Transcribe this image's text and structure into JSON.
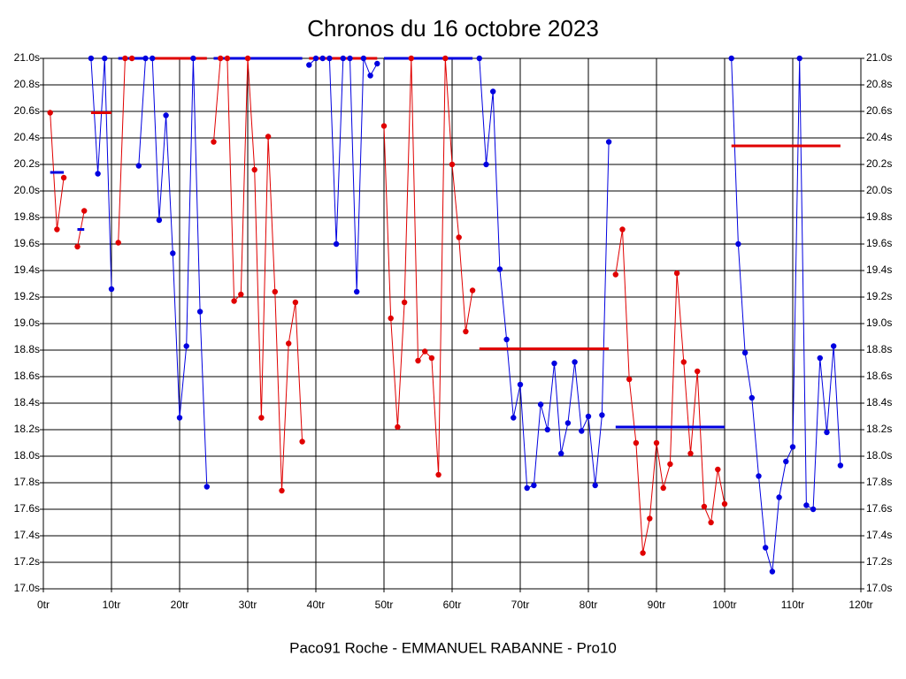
{
  "chart_data": {
    "type": "line",
    "title": "Chronos du 16 octobre 2023",
    "footer": "Paco91 Roche - EMMANUEL RABANNE - Pro10",
    "x": [
      1,
      2,
      3,
      4,
      5,
      6,
      7,
      8,
      9,
      10,
      11,
      12,
      13,
      14,
      15,
      16,
      17,
      18,
      19,
      20,
      21,
      22,
      23,
      24,
      25,
      26,
      27,
      28,
      29,
      30,
      31,
      32,
      33,
      34,
      35,
      36,
      37,
      38,
      39,
      40,
      41,
      42,
      43,
      44,
      45,
      46,
      47,
      48,
      49,
      50,
      51,
      52,
      53,
      54,
      55,
      56,
      57,
      58,
      59,
      60,
      61,
      62,
      63,
      64,
      65,
      66,
      67,
      68,
      69,
      70,
      71,
      72,
      73,
      74,
      75,
      76,
      77,
      78,
      79,
      80,
      81,
      82,
      83,
      84,
      85,
      86,
      87,
      88,
      89,
      90,
      91,
      92,
      93,
      94,
      95,
      96,
      97,
      98,
      99,
      100,
      101,
      102,
      103,
      104,
      105,
      106,
      107,
      108,
      109,
      110,
      111,
      112,
      113,
      114,
      115,
      116,
      117
    ],
    "series": [
      {
        "color": "#e00000",
        "values": [
          20.59,
          19.71,
          20.1,
          null,
          19.58,
          19.85,
          null,
          null,
          null,
          null,
          19.61,
          21.0,
          21.0,
          null,
          null,
          null,
          null,
          null,
          null,
          null,
          null,
          null,
          null,
          null,
          20.37,
          21.0,
          21.0,
          19.17,
          19.22,
          21.0,
          20.16,
          18.29,
          20.41,
          19.24,
          17.74,
          18.85,
          19.16,
          18.11,
          null,
          null,
          null,
          null,
          null,
          null,
          null,
          null,
          null,
          null,
          null,
          20.49,
          19.04,
          18.22,
          19.16,
          21.0,
          18.72,
          18.79,
          18.74,
          17.86,
          21.0,
          20.2,
          19.65,
          18.94,
          19.25,
          null,
          null,
          null,
          null,
          null,
          null,
          null,
          null,
          null,
          null,
          null,
          null,
          null,
          null,
          null,
          null,
          null,
          null,
          null,
          null,
          19.37,
          19.71,
          18.58,
          18.1,
          17.27,
          17.53,
          18.1,
          17.76,
          17.94,
          19.38,
          18.71,
          18.02,
          18.64,
          17.62,
          17.5,
          17.9,
          17.64,
          null,
          null,
          null,
          null,
          null,
          null,
          null,
          null,
          null,
          null,
          null,
          null,
          null,
          null,
          null,
          null,
          null
        ]
      },
      {
        "color": "#0000e0",
        "values": [
          null,
          null,
          null,
          null,
          null,
          null,
          21.0,
          20.13,
          21.0,
          19.26,
          null,
          null,
          null,
          20.19,
          21.0,
          21.0,
          19.78,
          20.57,
          19.53,
          18.29,
          18.83,
          21.0,
          19.09,
          17.77,
          null,
          null,
          null,
          null,
          null,
          null,
          null,
          null,
          null,
          null,
          null,
          null,
          null,
          null,
          20.95,
          21.0,
          21.0,
          21.0,
          19.6,
          21.0,
          21.0,
          19.24,
          21.0,
          20.87,
          20.96,
          null,
          null,
          null,
          null,
          null,
          null,
          null,
          null,
          null,
          null,
          null,
          null,
          null,
          null,
          21.0,
          20.2,
          20.75,
          19.41,
          18.88,
          18.29,
          18.54,
          17.76,
          17.78,
          18.39,
          18.2,
          18.7,
          18.02,
          18.25,
          18.71,
          18.19,
          18.3,
          17.78,
          18.31,
          20.37,
          null,
          null,
          null,
          null,
          null,
          null,
          null,
          null,
          null,
          null,
          null,
          null,
          null,
          null,
          null,
          null,
          null,
          21.0,
          19.6,
          18.78,
          18.44,
          17.85,
          17.31,
          17.13,
          17.69,
          17.96,
          18.07,
          21.0,
          17.63,
          17.6,
          18.74,
          18.18,
          18.83,
          17.93
        ]
      }
    ],
    "means": [
      {
        "color": "#0000e0",
        "x": [
          1,
          3
        ],
        "value": 20.14
      },
      {
        "color": "#0000e0",
        "x": [
          5,
          6
        ],
        "value": 19.71
      },
      {
        "color": "#e00000",
        "x": [
          7,
          10
        ],
        "value": 20.59
      },
      {
        "color": "#0000e0",
        "x": [
          11,
          15
        ],
        "value": 21.0
      },
      {
        "color": "#e00000",
        "x": [
          16,
          24
        ],
        "value": 21.0
      },
      {
        "color": "#0000e0",
        "x": [
          25,
          38
        ],
        "value": 21.0
      },
      {
        "color": "#e00000",
        "x": [
          39,
          49
        ],
        "value": 21.0
      },
      {
        "color": "#0000e0",
        "x": [
          50,
          63
        ],
        "value": 21.0
      },
      {
        "color": "#e00000",
        "x": [
          64,
          83
        ],
        "value": 18.81
      },
      {
        "color": "#0000e0",
        "x": [
          84,
          100
        ],
        "value": 18.22
      },
      {
        "color": "#e00000",
        "x": [
          101,
          117
        ],
        "value": 20.34
      }
    ],
    "xlim": [
      0,
      120
    ],
    "xticks": [
      {
        "value": 0,
        "label": "0tr"
      },
      {
        "value": 10,
        "label": "10tr"
      },
      {
        "value": 20,
        "label": "20tr"
      },
      {
        "value": 30,
        "label": "30tr"
      },
      {
        "value": 40,
        "label": "40tr"
      },
      {
        "value": 50,
        "label": "50tr"
      },
      {
        "value": 60,
        "label": "60tr"
      },
      {
        "value": 70,
        "label": "70tr"
      },
      {
        "value": 80,
        "label": "80tr"
      },
      {
        "value": 90,
        "label": "90tr"
      },
      {
        "value": 100,
        "label": "100tr"
      },
      {
        "value": 110,
        "label": "110tr"
      },
      {
        "value": 120,
        "label": "120tr"
      }
    ],
    "ylim": [
      17.0,
      21.0
    ],
    "yticks": [
      {
        "value": 17.0,
        "label": "17.0s"
      },
      {
        "value": 17.2,
        "label": "17.2s"
      },
      {
        "value": 17.4,
        "label": "17.4s"
      },
      {
        "value": 17.6,
        "label": "17.6s"
      },
      {
        "value": 17.8,
        "label": "17.8s"
      },
      {
        "value": 18.0,
        "label": "18.0s"
      },
      {
        "value": 18.2,
        "label": "18.2s"
      },
      {
        "value": 18.4,
        "label": "18.4s"
      },
      {
        "value": 18.6,
        "label": "18.6s"
      },
      {
        "value": 18.8,
        "label": "18.8s"
      },
      {
        "value": 19.0,
        "label": "19.0s"
      },
      {
        "value": 19.2,
        "label": "19.2s"
      },
      {
        "value": 19.4,
        "label": "19.4s"
      },
      {
        "value": 19.6,
        "label": "19.6s"
      },
      {
        "value": 19.8,
        "label": "19.8s"
      },
      {
        "value": 20.0,
        "label": "20.0s"
      },
      {
        "value": 20.2,
        "label": "20.2s"
      },
      {
        "value": 20.4,
        "label": "20.4s"
      },
      {
        "value": 20.6,
        "label": "20.6s"
      },
      {
        "value": 20.8,
        "label": "20.8s"
      },
      {
        "value": 21.0,
        "label": "21.0s"
      }
    ],
    "grid": true
  }
}
